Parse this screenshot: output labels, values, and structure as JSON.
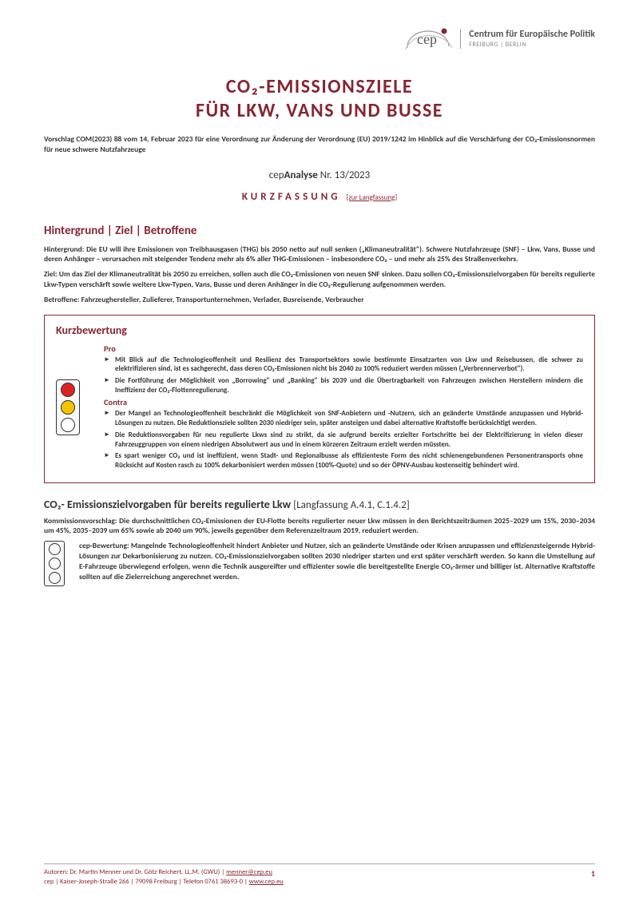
{
  "header": {
    "org_name": "Centrum für Europäische Politik",
    "org_sub": "FREIBURG | BERLIN",
    "logo_letters": "cep",
    "dot_color": "#862633",
    "arc_color": "#888"
  },
  "title_line1": "CO₂-EMISSIONSZIELE",
  "title_line2": "FÜR LKW, VANS UND BUSSE",
  "subtitle": "Vorschlag COM(2023) 88 vom 14. Februar 2023 für eine Verordnung zur Änderung der Verordnung (EU) 2019/1242 im Hinblick auf die Verschärfung der CO₂-Emissionsnormen für neue schwere Nutzfahrzeuge",
  "analyse_prefix": "cep",
  "analyse_bold": "Analyse",
  "analyse_suffix": " Nr. 13/2023",
  "kf_label": "KURZFASSUNG",
  "kf_link": "[zur Langfassung]",
  "sect1_title": "Hintergrund | Ziel | Betroffene",
  "p_hintergrund": "Hintergrund: Die EU will ihre Emissionen von Treibhausgasen (THG) bis 2050 netto auf null senken („Klimaneutralität\"). Schwere Nutzfahrzeuge (SNF) – Lkw, Vans, Busse und deren Anhänger – verursachen mit steigender Tendenz mehr als 6% aller THG-Emissionen – insbesondere CO₂ – und mehr als 25% des Straßenverkehrs.",
  "p_ziel": "Ziel: Um das Ziel der Klimaneutralität bis 2050 zu erreichen, sollen auch die CO₂-Emissionen von neuen SNF sinken. Dazu sollen CO₂-Emissionszielvorgaben für bereits regulierte Lkw-Typen verschärft sowie weitere Lkw-Typen, Vans, Busse und deren Anhänger in die CO₂-Regulierung aufgenommen werden.",
  "p_betroffene": "Betroffene: Fahrzeughersteller, Zulieferer, Transportunternehmen, Verlader, Busreisende, Verbraucher",
  "eval": {
    "title": "Kurzbewertung",
    "pro_label": "Pro",
    "contra_label": "Contra",
    "lights": [
      "red",
      "yellow",
      "off"
    ],
    "pro": [
      "Mit Blick auf die Technologieoffenheit und Resilienz des Transportsektors sowie bestimmte Einsatzarten von Lkw und Reisebussen, die schwer zu elektrifizieren sind, ist es sachgerecht, dass deren CO₂-Emissionen nicht bis 2040 zu 100% reduziert werden müssen („Verbrennerverbot\").",
      "Die Fortführung der Möglichkeit von „Borrowing\" und „Banking\" bis 2039 und die Übertragbarkeit von Fahrzeugen zwischen Herstellern mindern die Ineffizienz der CO₂-Flottenregulierung."
    ],
    "contra": [
      "Der Mangel an Technologieoffenheit beschränkt die Möglichkeit von SNF-Anbietern und -Nutzern, sich an geänderte Umstände anzupassen und Hybrid-Lösungen zu nutzen. Die Reduktionsziele sollten 2030 niedriger sein, später ansteigen und dabei alternative Kraftstoffe berücksichtigt werden.",
      "Die Reduktionsvorgaben für neu regulierte Lkws sind zu strikt, da sie aufgrund bereits erzielter Fortschritte bei der Elektrifizierung in vielen dieser Fahrzeuggruppen von einem niedrigen Absolutwert aus und in einem kürzeren Zeitraum erzielt werden müssten.",
      "Es spart weniger CO₂ und ist ineffizient, wenn Stadt- und Regionalbusse als effizienteste Form des nicht schienengebundenen Personentransports ohne Rücksicht auf Kosten rasch zu 100% dekarbonisiert werden müssen (100%-Quote) und so der ÖPNV-Ausbau kostenseitig behindert wird."
    ]
  },
  "sect2_title": "CO₂- Emissionszielvorgaben für bereits regulierte Lkw",
  "sect2_ref": "[Langfassung A.4.1, C.1.4.2]",
  "p_kommission": "Kommissionsvorschlag: Die durchschnittlichen CO₂-Emissionen der EU-Flotte bereits regulierter neuer Lkw müssen in den Berichtszeiträumen 2025–2029 um 15%, 2030–2034 um 45%, 2035–2039 um 65% sowie ab 2040 um 90%, jeweils gegenüber dem Referenzzeitraum 2019, reduziert werden.",
  "lights2": [
    "red",
    "off",
    "off"
  ],
  "p_cep_bewertung": "cep-Bewertung: Mangelnde Technologieoffenheit hindert Anbieter und Nutzer, sich an geänderte Umstände oder Krisen anzupassen und effizienzsteigernde Hybrid-Lösungen zur Dekarbonisierung zu nutzen. CO₂-Emissionszielvorgaben sollten 2030 niedriger starten und erst später verschärft werden. So kann die Umstellung auf E-Fahrzeuge überwiegend erfolgen, wenn die Technik ausgereifter und effizienter sowie die bereitgestellte Energie CO₂-ärmer und billiger ist. Alternative Kraftstoffe sollten auf die Zielerreichung angerechnet werden.",
  "footer": {
    "line1_a": "Autoren: Dr. Martin Menner und Dr. Götz Reichert, LL.M. (GWU) | ",
    "line1_link": "menner@cep.eu",
    "line2_a": "cep | Kaiser-Joseph-Straße 266 | 79098 Freiburg | Telefon 0761 38693-0 | ",
    "line2_link": "www.cep.eu",
    "page": "1"
  }
}
